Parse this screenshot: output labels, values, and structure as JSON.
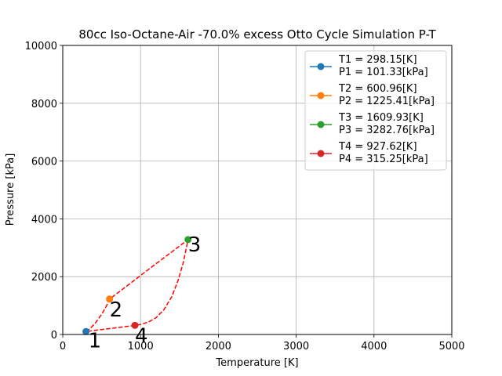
{
  "chart_data": {
    "type": "line",
    "title": "80cc Iso-Octane-Air -70.0% excess Otto Cycle Simulation P-T",
    "xlabel": "Temperature [K]",
    "ylabel": "Pressure [kPa]",
    "xlim": [
      0,
      5000
    ],
    "ylim": [
      0,
      10000
    ],
    "xticks": [
      0,
      1000,
      2000,
      3000,
      4000,
      5000
    ],
    "yticks": [
      0,
      2000,
      4000,
      6000,
      8000,
      10000
    ],
    "grid": true,
    "legend_position": "top-right",
    "states": [
      {
        "label": "1",
        "legend": [
          "T1 = 298.15[K]",
          "P1 = 101.33[kPa]"
        ],
        "x": 298.15,
        "y": 101.33,
        "color": "#1f77b4"
      },
      {
        "label": "2",
        "legend": [
          "T2 = 600.96[K]",
          "P2 = 1225.41[kPa]"
        ],
        "x": 600.96,
        "y": 1225.41,
        "color": "#ff7f0e"
      },
      {
        "label": "3",
        "legend": [
          "T3 = 1609.93[K]",
          "P3 = 3282.76[kPa]"
        ],
        "x": 1609.93,
        "y": 3282.76,
        "color": "#2ca02c"
      },
      {
        "label": "4",
        "legend": [
          "T4 = 927.62[K]",
          "P4 = 315.25[kPa]"
        ],
        "x": 927.62,
        "y": 315.25,
        "color": "#d62728"
      }
    ],
    "cycle_curve_color": "#ff0000",
    "cycle_curve": [
      [
        298.15,
        101.33
      ],
      [
        350,
        200
      ],
      [
        420,
        400
      ],
      [
        500,
        700
      ],
      [
        560,
        980
      ],
      [
        600.96,
        1225.41
      ],
      [
        800,
        1630
      ],
      [
        1000,
        2040
      ],
      [
        1200,
        2450
      ],
      [
        1400,
        2855
      ],
      [
        1609.93,
        3282.76
      ],
      [
        1550,
        2500
      ],
      [
        1480,
        1850
      ],
      [
        1400,
        1300
      ],
      [
        1300,
        860
      ],
      [
        1200,
        580
      ],
      [
        1100,
        430
      ],
      [
        1000,
        350
      ],
      [
        927.62,
        315.25
      ],
      [
        800,
        270
      ],
      [
        650,
        220
      ],
      [
        500,
        170
      ],
      [
        400,
        135
      ],
      [
        298.15,
        101.33
      ]
    ]
  }
}
